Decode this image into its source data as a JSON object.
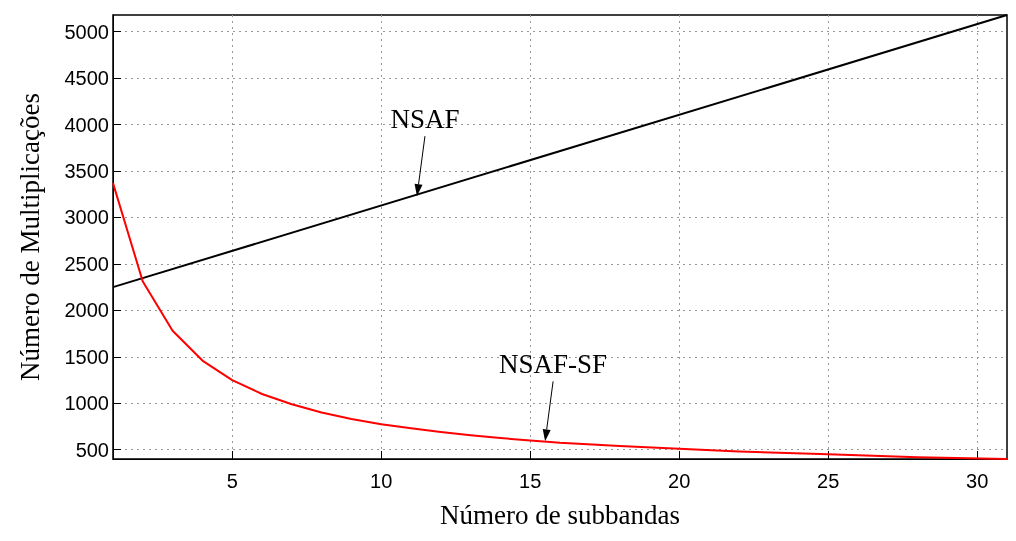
{
  "chart_data": {
    "type": "line",
    "xlabel": "Número de subbandas",
    "ylabel": "Número de Multiplicações",
    "xlim": [
      1,
      31
    ],
    "xticks": [
      5,
      10,
      15,
      20,
      25,
      30
    ],
    "ylim": [
      400,
      5180
    ],
    "yticks": [
      500,
      1000,
      1500,
      2000,
      2500,
      3000,
      3500,
      4000,
      4500,
      5000
    ],
    "grid": true,
    "marker": "none",
    "line_style": "solid",
    "series": [
      {
        "color": "#000000",
        "x": [
          1,
          31
        ],
        "values": [
          2250,
          5180
        ]
      },
      {
        "color": "#ff0000",
        "x": [
          1,
          2,
          3,
          4,
          5,
          6,
          7,
          8,
          9,
          10,
          11,
          12,
          13,
          14,
          15,
          16,
          18,
          20,
          22,
          25,
          28,
          31
        ],
        "values": [
          3370,
          2310,
          1780,
          1460,
          1250,
          1100,
          990,
          900,
          830,
          775,
          730,
          690,
          655,
          625,
          600,
          575,
          540,
          510,
          480,
          450,
          420,
          400
        ]
      }
    ],
    "annotations": [
      {
        "text": "NSAF",
        "x": 11.2,
        "y": 3230
      },
      {
        "text": "NSAF-SF",
        "x": 15.5,
        "y": 590
      }
    ]
  }
}
